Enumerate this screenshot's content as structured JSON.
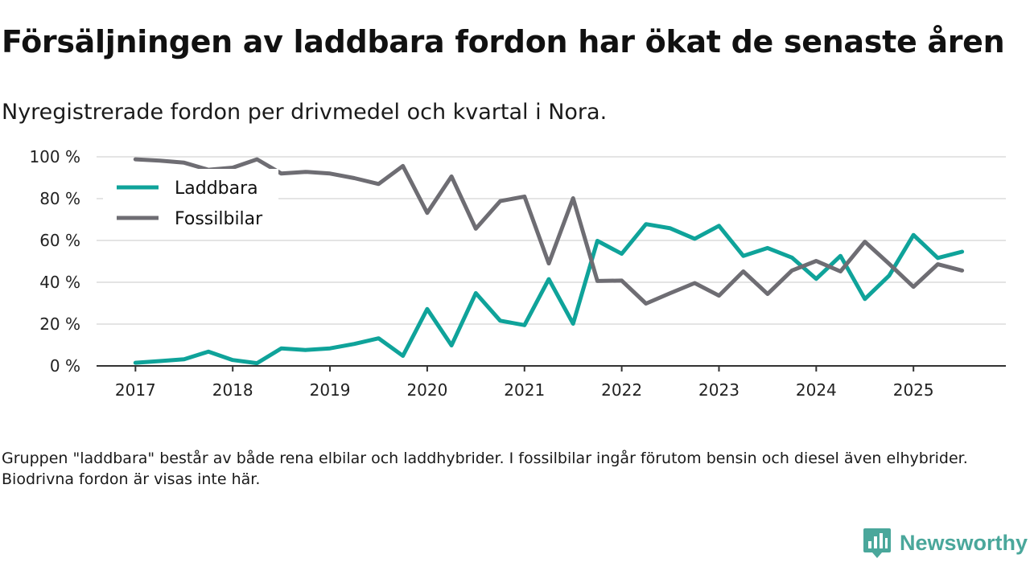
{
  "title": "Försäljningen av laddbara fordon har ökat de senaste åren",
  "subtitle": "Nyregistrerade fordon per drivmedel och kvartal i Nora.",
  "footnote": "Gruppen \"laddbara\" består av både rena elbilar och laddhybrider. I fossilbilar ingår förutom bensin och diesel även elhybrider. Biodrivna fordon är visas inte här.",
  "brand": {
    "name": "Newsworthy",
    "icon": "newsworthy-logo-icon",
    "color": "#4aa79b"
  },
  "chart_data": {
    "type": "line",
    "title": "Försäljningen av laddbara fordon har ökat de senaste åren",
    "xlabel": "",
    "ylabel": "",
    "ylim": [
      0,
      100
    ],
    "yticks": [
      0,
      20,
      40,
      60,
      80,
      100
    ],
    "ytick_labels": [
      "0 %",
      "20 %",
      "40 %",
      "60 %",
      "80 %",
      "100 %"
    ],
    "xlim": [
      2016.6,
      2025.95
    ],
    "xticks": [
      2017,
      2018,
      2019,
      2020,
      2021,
      2022,
      2023,
      2024,
      2025
    ],
    "xtick_labels": [
      "2017",
      "2018",
      "2019",
      "2020",
      "2021",
      "2022",
      "2023",
      "2024",
      "2025"
    ],
    "grid": true,
    "legend_position": "top-left",
    "x": [
      2017.0,
      2017.25,
      2017.5,
      2017.75,
      2018.0,
      2018.25,
      2018.5,
      2018.75,
      2019.0,
      2019.25,
      2019.5,
      2019.75,
      2020.0,
      2020.25,
      2020.5,
      2020.75,
      2021.0,
      2021.25,
      2021.5,
      2021.75,
      2022.0,
      2022.25,
      2022.5,
      2022.75,
      2023.0,
      2023.25,
      2023.5,
      2023.75,
      2024.0,
      2024.25,
      2024.5,
      2024.75,
      2025.0,
      2025.25,
      2025.5
    ],
    "series": [
      {
        "name": "Laddbara",
        "color": "#0fa39a",
        "values": [
          1.5,
          2.3,
          3.2,
          6.8,
          2.8,
          1.3,
          8.4,
          7.6,
          8.4,
          10.5,
          13.2,
          4.8,
          27.2,
          9.8,
          34.8,
          21.6,
          19.5,
          41.5,
          20.2,
          59.8,
          53.6,
          67.8,
          65.8,
          60.8,
          67.0,
          52.6,
          56.4,
          51.8,
          41.6,
          52.6,
          32.0,
          43.2,
          62.6,
          51.6,
          54.6
        ]
      },
      {
        "name": "Fossilbilar",
        "color": "#6e6d73",
        "values": [
          98.8,
          98.2,
          97.2,
          93.8,
          94.8,
          98.8,
          92.0,
          92.8,
          92.0,
          89.8,
          87.0,
          95.6,
          73.2,
          90.6,
          65.6,
          78.8,
          81.0,
          49.0,
          80.2,
          40.6,
          40.8,
          29.8,
          34.8,
          39.6,
          33.6,
          45.2,
          34.4,
          45.6,
          50.2,
          45.2,
          59.4,
          48.8,
          37.8,
          48.6,
          45.6
        ]
      }
    ]
  }
}
